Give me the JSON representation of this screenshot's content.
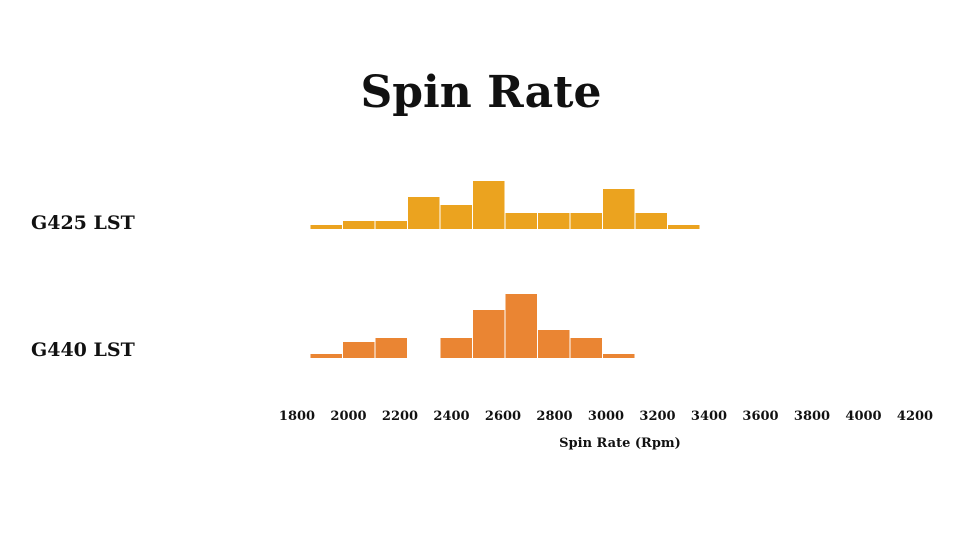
{
  "chart_data": {
    "type": "bar",
    "title": "Spin Rate",
    "xlabel": "Spin Rate (Rpm)",
    "x_ticks": [
      "1800",
      "2000",
      "2200",
      "2400",
      "2600",
      "2800",
      "3000",
      "3200",
      "3400",
      "3600",
      "3800",
      "4000",
      "4200"
    ],
    "bin_width": 125,
    "bin_starts": [
      1875,
      2000,
      2125,
      2250,
      2375,
      2500,
      2625,
      2750,
      2875,
      3000,
      3125,
      3250,
      3375
    ],
    "series": [
      {
        "name": "G425 LST",
        "color": "#EBA31F",
        "values": [
          1,
          2,
          2,
          8,
          6,
          12,
          4,
          4,
          4,
          10,
          4,
          1,
          0
        ]
      },
      {
        "name": "G440 LST",
        "color": "#EA8533",
        "values": [
          1,
          4,
          5,
          0,
          5,
          12,
          16,
          7,
          5,
          1,
          0,
          0,
          0
        ]
      }
    ]
  }
}
